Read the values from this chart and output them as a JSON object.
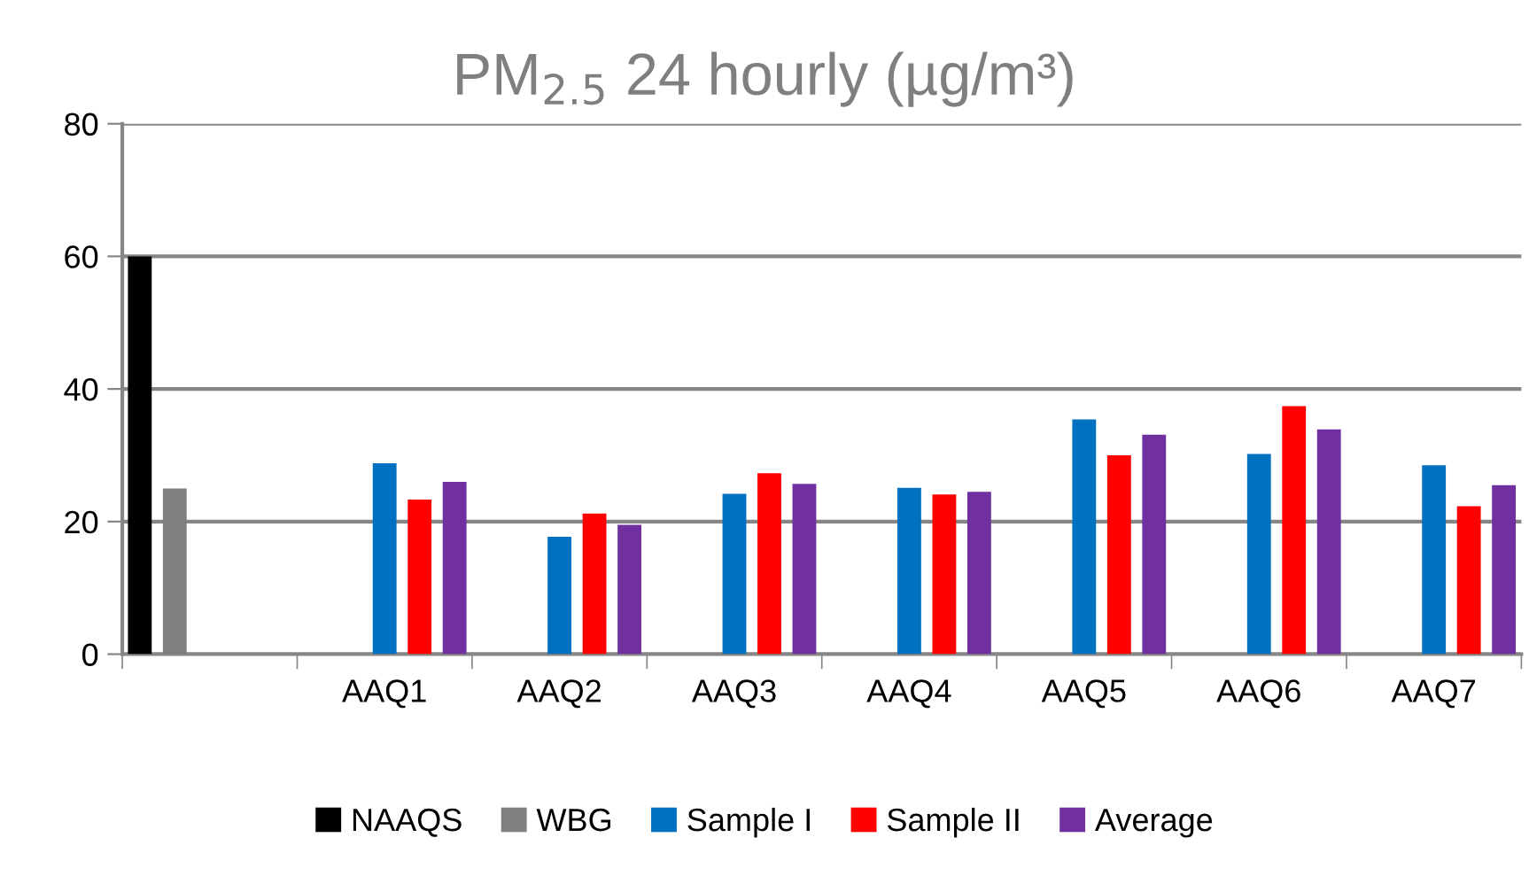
{
  "chart_data": {
    "type": "bar",
    "title": "PM$_{2.5}$ 24 hourly (µg/m³)",
    "categories": [
      null,
      "AAQ1",
      "AAQ2",
      "AAQ3",
      "AAQ4",
      "AAQ5",
      "AAQ6",
      "AAQ7"
    ],
    "series": [
      {
        "name": "NAAQS",
        "color": "#000000",
        "values": [
          60,
          null,
          null,
          null,
          null,
          null,
          null,
          null
        ]
      },
      {
        "name": "WBG",
        "color": "#7f7f7f",
        "values": [
          25,
          null,
          null,
          null,
          null,
          null,
          null,
          null
        ]
      },
      {
        "name": "Sample I",
        "color": "#0070c0",
        "values": [
          null,
          28.8,
          17.7,
          24.2,
          25.1,
          35.4,
          30.2,
          28.5
        ]
      },
      {
        "name": "Sample II",
        "color": "#ff0000",
        "values": [
          null,
          23.3,
          21.2,
          27.3,
          24.1,
          30.0,
          37.4,
          22.3
        ]
      },
      {
        "name": "Average",
        "color": "#7030a0",
        "values": [
          null,
          26.0,
          19.5,
          25.7,
          24.5,
          33.1,
          33.9,
          25.5
        ]
      }
    ],
    "ylim": [
      0,
      80
    ],
    "yticks": [
      0,
      20,
      40,
      60,
      80
    ],
    "grid": "y",
    "legend": "bottom"
  }
}
